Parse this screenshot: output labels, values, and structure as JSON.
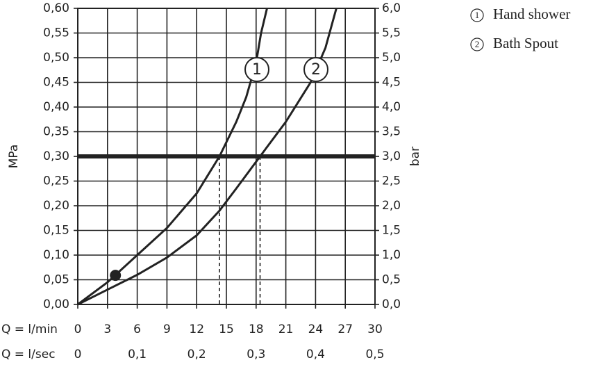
{
  "chart_data": {
    "type": "line",
    "x_label": "Q = l/min",
    "x2_label": "Q = l/sec",
    "y_label": "MPa",
    "y2_label": "bar",
    "xlim": [
      0,
      30
    ],
    "xticks": [
      0,
      3,
      6,
      9,
      12,
      15,
      18,
      21,
      24,
      27,
      30
    ],
    "x2lim": [
      0,
      0.5
    ],
    "x2ticks": [
      0,
      {
        "value": 0.1,
        "label": "0,1"
      },
      {
        "value": 0.2,
        "label": "0,2"
      },
      {
        "value": 0.3,
        "label": "0,3"
      },
      {
        "value": 0.4,
        "label": "0,4"
      },
      {
        "value": 0.5,
        "label": "0,5"
      }
    ],
    "ylim": [
      0,
      0.6
    ],
    "yticks": [
      {
        "value": 0,
        "label": "0,00"
      },
      {
        "value": 0.05,
        "label": "0,05"
      },
      {
        "value": 0.1,
        "label": "0,10"
      },
      {
        "value": 0.15,
        "label": "0,15"
      },
      {
        "value": 0.2,
        "label": "0,20"
      },
      {
        "value": 0.25,
        "label": "0,25"
      },
      {
        "value": 0.3,
        "label": "0,30"
      },
      {
        "value": 0.35,
        "label": "0,35"
      },
      {
        "value": 0.4,
        "label": "0,40"
      },
      {
        "value": 0.45,
        "label": "0,45"
      },
      {
        "value": 0.5,
        "label": "0,50"
      },
      {
        "value": 0.55,
        "label": "0,55"
      },
      {
        "value": 0.6,
        "label": "0,60"
      }
    ],
    "y2lim": [
      0,
      6
    ],
    "y2ticks": [
      {
        "value": 0,
        "label": "0,0"
      },
      {
        "value": 0.5,
        "label": "0,5"
      },
      {
        "value": 1,
        "label": "1,0"
      },
      {
        "value": 1.5,
        "label": "1,5"
      },
      {
        "value": 2,
        "label": "2,0"
      },
      {
        "value": 2.5,
        "label": "2,5"
      },
      {
        "value": 3,
        "label": "3,0"
      },
      {
        "value": 3.5,
        "label": "3,5"
      },
      {
        "value": 4,
        "label": "4,0"
      },
      {
        "value": 4.5,
        "label": "4,5"
      },
      {
        "value": 5,
        "label": "5,0"
      },
      {
        "value": 5.5,
        "label": "5,5"
      },
      {
        "value": 6,
        "label": "6,0"
      }
    ],
    "grid": true,
    "color": "#222222",
    "reference_y": 0.3,
    "dashed_x": [
      14.3,
      18.4
    ],
    "point": {
      "x": 3.8,
      "y": 0.059
    },
    "series": [
      {
        "name": "Hand shower",
        "key": "1",
        "x": [
          0,
          3,
          6,
          9,
          12,
          14.3,
          16,
          17,
          18,
          18.5,
          19.1
        ],
        "y": [
          0,
          0.045,
          0.1,
          0.155,
          0.225,
          0.3,
          0.37,
          0.42,
          0.49,
          0.55,
          0.6
        ]
      },
      {
        "name": "Bath Spout",
        "key": "2",
        "x": [
          0,
          3,
          6,
          9,
          12,
          14.3,
          16,
          18.4,
          21,
          23.5,
          25,
          26.1
        ],
        "y": [
          0,
          0.03,
          0.06,
          0.095,
          0.14,
          0.19,
          0.235,
          0.3,
          0.37,
          0.45,
          0.52,
          0.6
        ]
      }
    ]
  }
}
